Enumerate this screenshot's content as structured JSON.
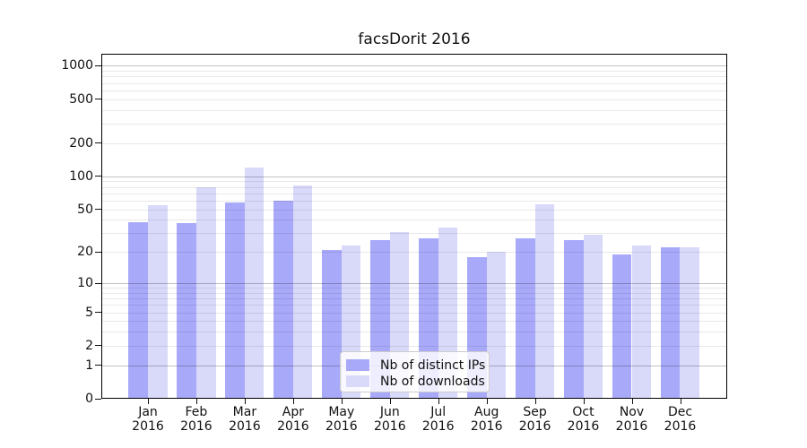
{
  "title": "facsDorit 2016",
  "chart_data": {
    "type": "bar",
    "title": "facsDorit 2016",
    "yscale": "log1p",
    "ylim": [
      0,
      1281
    ],
    "yticks": [
      0,
      1,
      2,
      5,
      10,
      20,
      50,
      100,
      200,
      500,
      1000
    ],
    "grid": true,
    "legend_position": "lower center",
    "categories": [
      "Jan 2016",
      "Feb 2016",
      "Mar 2016",
      "Apr 2016",
      "May 2016",
      "Jun 2016",
      "Jul 2016",
      "Aug 2016",
      "Sep 2016",
      "Oct 2016",
      "Nov 2016",
      "Dec 2016"
    ],
    "series": [
      {
        "name": "Nb of distinct IPs",
        "color": "#a9a9fa",
        "values": [
          38,
          37,
          58,
          60,
          21,
          26,
          27,
          18,
          27,
          26,
          19,
          22
        ]
      },
      {
        "name": "Nb of downloads",
        "color": "#d9d9fa",
        "values": [
          54,
          80,
          120,
          83,
          23,
          31,
          34,
          20,
          55,
          29,
          23,
          22
        ]
      }
    ]
  }
}
